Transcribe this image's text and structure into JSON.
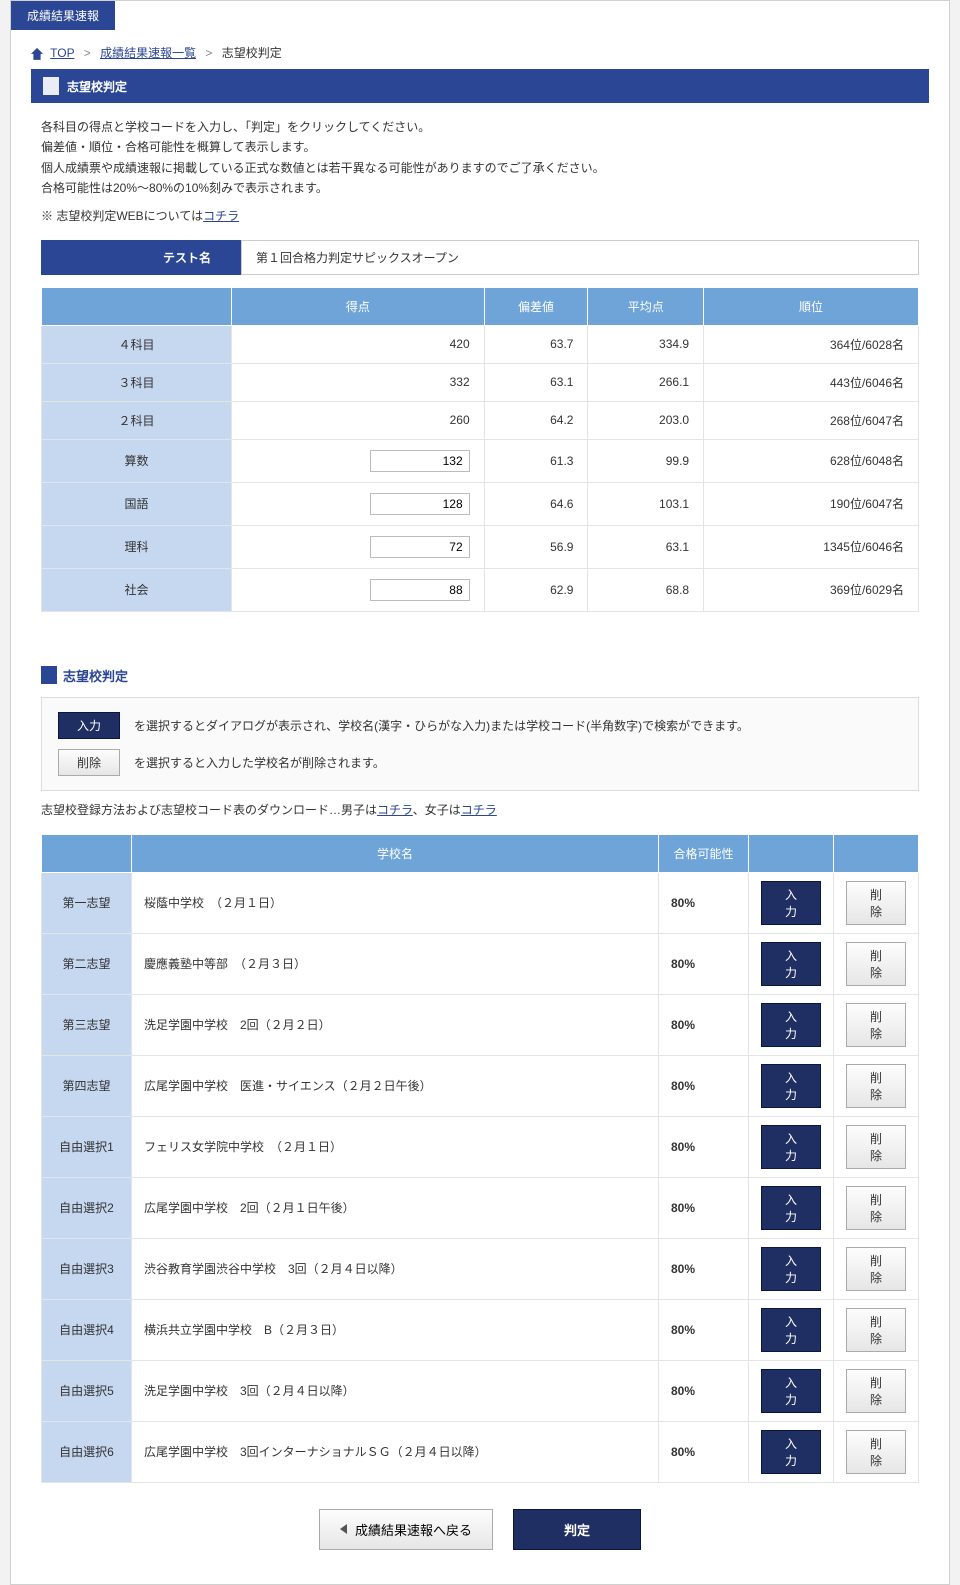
{
  "tab_label": "成績結果速報",
  "breadcrumb": {
    "top": "TOP",
    "list": "成績結果速報一覧",
    "current": "志望校判定"
  },
  "page_title": "志望校判定",
  "intro": {
    "l1": "各科目の得点と学校コードを入力し、「判定」をクリックしてください。",
    "l2": "偏差値・順位・合格可能性を概算して表示します。",
    "l3": "個人成績票や成績速報に掲載している正式な数値とは若干異なる可能性がありますのでご了承ください。",
    "l4": "合格可能性は20%～80%の10%刻みで表示されます。",
    "sub_prefix": "※ 志望校判定WEBについては",
    "sub_link": "コチラ"
  },
  "test_name_label": "テスト名",
  "test_name_value": "第１回合格力判定サピックスオープン",
  "score_headers": {
    "h1": "得点",
    "h2": "偏差値",
    "h3": "平均点",
    "h4": "順位"
  },
  "score_rows": [
    {
      "label": "４科目",
      "score": "420",
      "dev": "63.7",
      "avg": "334.9",
      "rank": "364位/6028名",
      "input": false
    },
    {
      "label": "３科目",
      "score": "332",
      "dev": "63.1",
      "avg": "266.1",
      "rank": "443位/6046名",
      "input": false
    },
    {
      "label": "２科目",
      "score": "260",
      "dev": "64.2",
      "avg": "203.0",
      "rank": "268位/6047名",
      "input": false
    },
    {
      "label": "算数",
      "score": "132",
      "dev": "61.3",
      "avg": "99.9",
      "rank": "628位/6048名",
      "input": true
    },
    {
      "label": "国語",
      "score": "128",
      "dev": "64.6",
      "avg": "103.1",
      "rank": "190位/6047名",
      "input": true
    },
    {
      "label": "理科",
      "score": "72",
      "dev": "56.9",
      "avg": "63.1",
      "rank": "1345位/6046名",
      "input": true
    },
    {
      "label": "社会",
      "score": "88",
      "dev": "62.9",
      "avg": "68.8",
      "rank": "369位/6029名",
      "input": true
    }
  ],
  "choice_section_title": "志望校判定",
  "desc": {
    "input_btn": "入力",
    "input_text": "を選択するとダイアログが表示され、学校名(漢字・ひらがな入力)または学校コード(半角数字)で検索ができます。",
    "delete_btn": "削除",
    "delete_text": "を選択すると入力した学校名が削除されます。"
  },
  "dl_row": {
    "prefix": "志望校登録方法および志望校コード表のダウンロード…男子は",
    "link1": "コチラ",
    "mid": "、女子は",
    "link2": "コチラ"
  },
  "choice_headers": {
    "h1": "学校名",
    "h2": "合格可能性"
  },
  "btn_input": "入力",
  "btn_delete": "削除",
  "choices": [
    {
      "label": "第一志望",
      "school": "桜蔭中学校　（２月１日）",
      "prob": "80%"
    },
    {
      "label": "第二志望",
      "school": "慶應義塾中等部　（２月３日）",
      "prob": "80%"
    },
    {
      "label": "第三志望",
      "school": "洗足学園中学校　2回（２月２日）",
      "prob": "80%"
    },
    {
      "label": "第四志望",
      "school": "広尾学園中学校　医進・サイエンス（２月２日午後）",
      "prob": "80%"
    },
    {
      "label": "自由選択1",
      "school": "フェリス女学院中学校　（２月１日）",
      "prob": "80%"
    },
    {
      "label": "自由選択2",
      "school": "広尾学園中学校　2回（２月１日午後）",
      "prob": "80%"
    },
    {
      "label": "自由選択3",
      "school": "渋谷教育学園渋谷中学校　3回（２月４日以降）",
      "prob": "80%"
    },
    {
      "label": "自由選択4",
      "school": "横浜共立学園中学校　B（２月３日）",
      "prob": "80%"
    },
    {
      "label": "自由選択5",
      "school": "洗足学園中学校　3回（２月４日以降）",
      "prob": "80%"
    },
    {
      "label": "自由選択6",
      "school": "広尾学園中学校　3回インターナショナルＳＧ（２月４日以降）",
      "prob": "80%"
    }
  ],
  "bottom": {
    "back": "成績結果速報へ戻る",
    "judge": "判定"
  }
}
